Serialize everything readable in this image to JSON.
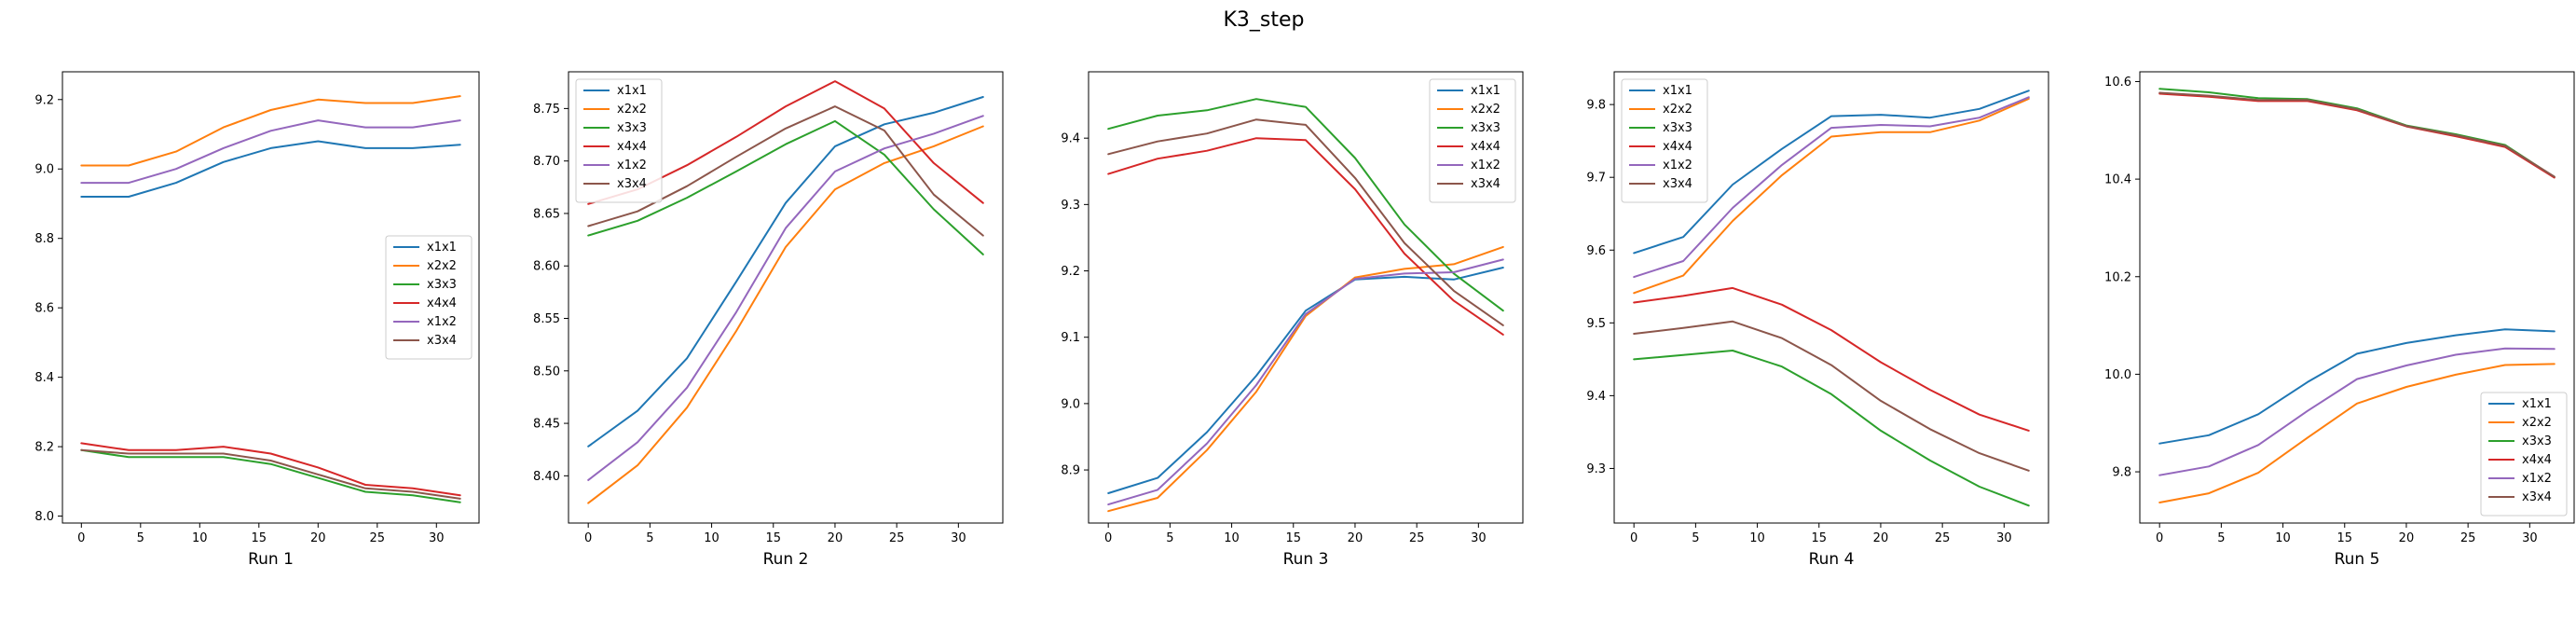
{
  "figure": {
    "title": "K3_step"
  },
  "colors": {
    "x1x1": "#1f77b4",
    "x2x2": "#ff7f0e",
    "x3x3": "#2ca02c",
    "x4x4": "#d62728",
    "x1x2": "#9467bd",
    "x3x4": "#8c564b"
  },
  "chart_data": [
    {
      "type": "line",
      "xlabel": "Run 1",
      "ylim": [
        7.98,
        9.28
      ],
      "xlim": [
        -1.6,
        33.6
      ],
      "xticks": [
        0,
        5,
        10,
        15,
        20,
        25,
        30
      ],
      "yticks": [
        8.0,
        8.2,
        8.4,
        8.6,
        8.8,
        9.0,
        9.2
      ],
      "legend_position": "center-right",
      "x": [
        0,
        4,
        8,
        12,
        16,
        20,
        24,
        28,
        32
      ],
      "series": [
        {
          "name": "x1x1",
          "values": [
            8.92,
            8.92,
            8.96,
            9.02,
            9.06,
            9.08,
            9.06,
            9.06,
            9.07
          ]
        },
        {
          "name": "x2x2",
          "values": [
            9.01,
            9.01,
            9.05,
            9.12,
            9.17,
            9.2,
            9.19,
            9.19,
            9.21
          ]
        },
        {
          "name": "x3x3",
          "values": [
            8.19,
            8.17,
            8.17,
            8.17,
            8.15,
            8.11,
            8.07,
            8.06,
            8.04
          ]
        },
        {
          "name": "x4x4",
          "values": [
            8.21,
            8.19,
            8.19,
            8.2,
            8.18,
            8.14,
            8.09,
            8.08,
            8.06
          ]
        },
        {
          "name": "x1x2",
          "values": [
            8.96,
            8.96,
            9.0,
            9.06,
            9.11,
            9.14,
            9.12,
            9.12,
            9.14
          ]
        },
        {
          "name": "x3x4",
          "values": [
            8.19,
            8.18,
            8.18,
            8.18,
            8.16,
            8.12,
            8.08,
            8.07,
            8.05
          ]
        }
      ]
    },
    {
      "type": "line",
      "xlabel": "Run 2",
      "ylim": [
        8.355,
        8.785
      ],
      "xlim": [
        -1.6,
        33.6
      ],
      "xticks": [
        0,
        5,
        10,
        15,
        20,
        25,
        30
      ],
      "yticks": [
        8.4,
        8.45,
        8.5,
        8.55,
        8.6,
        8.65,
        8.7,
        8.75
      ],
      "legend_position": "top-left",
      "x": [
        0,
        4,
        8,
        12,
        16,
        20,
        24,
        28,
        32
      ],
      "series": [
        {
          "name": "x1x1",
          "values": [
            8.428,
            8.462,
            8.512,
            8.585,
            8.66,
            8.714,
            8.735,
            8.746,
            8.761
          ]
        },
        {
          "name": "x2x2",
          "values": [
            8.374,
            8.41,
            8.465,
            8.538,
            8.618,
            8.673,
            8.698,
            8.714,
            8.733
          ]
        },
        {
          "name": "x3x3",
          "values": [
            8.629,
            8.643,
            8.665,
            8.69,
            8.716,
            8.738,
            8.706,
            8.654,
            8.611
          ]
        },
        {
          "name": "x4x4",
          "values": [
            8.659,
            8.673,
            8.696,
            8.723,
            8.752,
            8.776,
            8.75,
            8.698,
            8.66
          ]
        },
        {
          "name": "x1x2",
          "values": [
            8.396,
            8.432,
            8.484,
            8.556,
            8.636,
            8.69,
            8.712,
            8.726,
            8.743
          ]
        },
        {
          "name": "x3x4",
          "values": [
            8.638,
            8.652,
            8.676,
            8.704,
            8.731,
            8.752,
            8.729,
            8.668,
            8.629
          ]
        }
      ]
    },
    {
      "type": "line",
      "xlabel": "Run 3",
      "ylim": [
        8.82,
        9.5
      ],
      "xlim": [
        -1.6,
        33.6
      ],
      "xticks": [
        0,
        5,
        10,
        15,
        20,
        25,
        30
      ],
      "yticks": [
        8.9,
        9.0,
        9.1,
        9.2,
        9.3,
        9.4
      ],
      "legend_position": "top-right",
      "x": [
        0,
        4,
        8,
        12,
        16,
        20,
        24,
        28,
        32
      ],
      "series": [
        {
          "name": "x1x1",
          "values": [
            8.865,
            8.888,
            8.957,
            9.042,
            9.14,
            9.187,
            9.191,
            9.187,
            9.205
          ]
        },
        {
          "name": "x2x2",
          "values": [
            8.838,
            8.858,
            8.93,
            9.018,
            9.132,
            9.19,
            9.203,
            9.21,
            9.236
          ]
        },
        {
          "name": "x3x3",
          "values": [
            9.414,
            9.434,
            9.442,
            9.459,
            9.447,
            9.37,
            9.27,
            9.196,
            9.14
          ]
        },
        {
          "name": "x4x4",
          "values": [
            9.346,
            9.369,
            9.381,
            9.4,
            9.397,
            9.323,
            9.226,
            9.155,
            9.104
          ]
        },
        {
          "name": "x1x2",
          "values": [
            8.848,
            8.87,
            8.94,
            9.028,
            9.135,
            9.188,
            9.196,
            9.198,
            9.217
          ]
        },
        {
          "name": "x3x4",
          "values": [
            9.376,
            9.395,
            9.407,
            9.428,
            9.42,
            9.34,
            9.242,
            9.17,
            9.118
          ]
        }
      ]
    },
    {
      "type": "line",
      "xlabel": "Run 4",
      "ylim": [
        9.225,
        9.845
      ],
      "xlim": [
        -1.6,
        33.6
      ],
      "xticks": [
        0,
        5,
        10,
        15,
        20,
        25,
        30
      ],
      "yticks": [
        9.3,
        9.4,
        9.5,
        9.6,
        9.7,
        9.8
      ],
      "legend_position": "top-left",
      "x": [
        0,
        4,
        8,
        12,
        16,
        20,
        24,
        28,
        32
      ],
      "series": [
        {
          "name": "x1x1",
          "values": [
            9.596,
            9.618,
            9.69,
            9.739,
            9.784,
            9.786,
            9.782,
            9.794,
            9.819
          ]
        },
        {
          "name": "x2x2",
          "values": [
            9.541,
            9.565,
            9.64,
            9.703,
            9.756,
            9.762,
            9.762,
            9.778,
            9.808
          ]
        },
        {
          "name": "x3x3",
          "values": [
            9.45,
            9.456,
            9.462,
            9.44,
            9.402,
            9.352,
            9.311,
            9.275,
            9.249
          ]
        },
        {
          "name": "x4x4",
          "values": [
            9.528,
            9.537,
            9.548,
            9.525,
            9.49,
            9.446,
            9.408,
            9.374,
            9.352
          ]
        },
        {
          "name": "x1x2",
          "values": [
            9.563,
            9.585,
            9.658,
            9.717,
            9.768,
            9.772,
            9.77,
            9.782,
            9.81
          ]
        },
        {
          "name": "x3x4",
          "values": [
            9.485,
            9.493,
            9.502,
            9.479,
            9.442,
            9.393,
            9.354,
            9.321,
            9.297
          ]
        }
      ]
    },
    {
      "type": "line",
      "xlabel": "Run 5",
      "ylim": [
        9.695,
        10.62
      ],
      "xlim": [
        -1.6,
        33.6
      ],
      "xticks": [
        0,
        5,
        10,
        15,
        20,
        25,
        30
      ],
      "yticks": [
        9.8,
        10.0,
        10.2,
        10.4,
        10.6
      ],
      "legend_position": "bottom-right",
      "x": [
        0,
        4,
        8,
        12,
        16,
        20,
        24,
        28,
        32
      ],
      "series": [
        {
          "name": "x1x1",
          "values": [
            9.858,
            9.875,
            9.918,
            9.984,
            10.042,
            10.064,
            10.08,
            10.092,
            10.088
          ]
        },
        {
          "name": "x2x2",
          "values": [
            9.737,
            9.756,
            9.798,
            9.87,
            9.94,
            9.974,
            9.999,
            10.019,
            10.021
          ]
        },
        {
          "name": "x3x3",
          "values": [
            10.585,
            10.578,
            10.566,
            10.564,
            10.545,
            10.51,
            10.492,
            10.47,
            10.404
          ]
        },
        {
          "name": "x4x4",
          "values": [
            10.575,
            10.569,
            10.56,
            10.56,
            10.541,
            10.508,
            10.488,
            10.466,
            10.403
          ]
        },
        {
          "name": "x1x2",
          "values": [
            9.793,
            9.811,
            9.855,
            9.925,
            9.99,
            10.018,
            10.04,
            10.053,
            10.052
          ]
        },
        {
          "name": "x3x4",
          "values": [
            10.577,
            10.571,
            10.562,
            10.562,
            10.543,
            10.509,
            10.49,
            10.468,
            10.405
          ]
        }
      ]
    }
  ]
}
